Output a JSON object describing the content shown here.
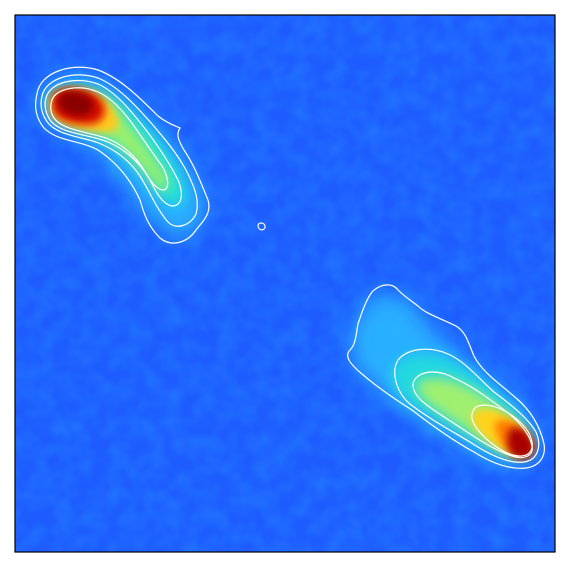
{
  "image": {
    "kind": "radio-intensity-map-with-contours",
    "colormap": "jet",
    "colors": {
      "background": "#1e5cff",
      "noise_dark": "#0000d8",
      "noise_light": "#2f86ff",
      "cyan": "#19e0e8",
      "green": "#7cf07a",
      "yellow": "#ffd21a",
      "orange": "#ff6a00",
      "red": "#c80000",
      "dark_red": "#800000",
      "contour": "#ffffff",
      "frame": "#000000"
    }
  }
}
